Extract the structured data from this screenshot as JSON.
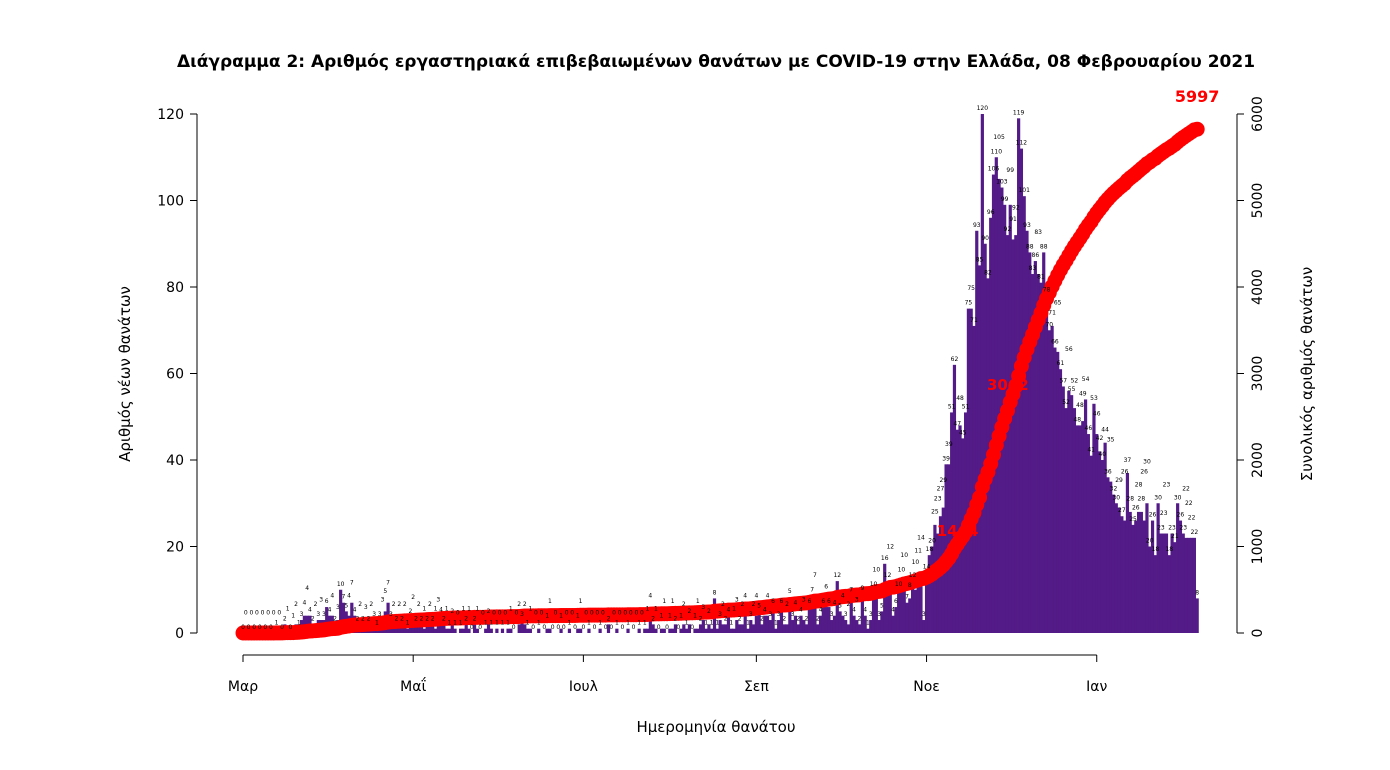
{
  "chart_data": {
    "type": "bar",
    "title": "Διάγραμμα 2: Αριθμός εργαστηριακά επιβεβαιωμένων θανάτων με COVID-19 στην Ελλάδα, 08 Φεβρουαρίου 2021",
    "xlabel": "Ημερομηνία θανάτου",
    "ylabel": "Αριθμός νέων θανάτων",
    "ylabel_right": "Συνολικός αριθμός θανάτων",
    "ylim": [
      0,
      120
    ],
    "ylim_right": [
      0,
      6000
    ],
    "yticks": [
      "0",
      "20",
      "40",
      "60",
      "80",
      "100",
      "120"
    ],
    "yticks_right": [
      "0",
      "1000",
      "2000",
      "3000",
      "4000",
      "5000",
      "6000"
    ],
    "x_start_date": "2020-03-01",
    "xticks": [
      {
        "label": "Μαρ",
        "day": 0
      },
      {
        "label": "Μαΐ",
        "day": 61
      },
      {
        "label": "Ιουλ",
        "day": 122
      },
      {
        "label": "Σεπ",
        "day": 184
      },
      {
        "label": "Νοε",
        "day": 245
      },
      {
        "label": "Ιαν",
        "day": 306
      }
    ],
    "colors": {
      "bars": "#531b87",
      "cumulative": "#ff0000"
    },
    "series": [
      {
        "name": "Νέοι θάνατοι",
        "type": "bar",
        "values": [
          0,
          0,
          0,
          0,
          0,
          0,
          0,
          0,
          0,
          0,
          0,
          0,
          1,
          0,
          0,
          2,
          1,
          0,
          1,
          2,
          1,
          3,
          4,
          4,
          4,
          2,
          2,
          3,
          3,
          3,
          6,
          4,
          4,
          2,
          3,
          10,
          7,
          5,
          4,
          7,
          4,
          2,
          2,
          2,
          3,
          2,
          2,
          3,
          1,
          3,
          3,
          5,
          7,
          3,
          2,
          2,
          2,
          2,
          2,
          1,
          2,
          2,
          2,
          2,
          2,
          1,
          2,
          2,
          2,
          1,
          3,
          4,
          2,
          1,
          1,
          2,
          1,
          0,
          1,
          1,
          2,
          1,
          0,
          2,
          1,
          0,
          0,
          1,
          2,
          1,
          0,
          1,
          0,
          1,
          0,
          1,
          1,
          0,
          0,
          2,
          3,
          2,
          1,
          1,
          0,
          0,
          1,
          0,
          0,
          1,
          1,
          0,
          0,
          0,
          1,
          0,
          0,
          1,
          0,
          0,
          1,
          1,
          0,
          0,
          1,
          0,
          0,
          0,
          1,
          0,
          0,
          2,
          0,
          0,
          1,
          0,
          0,
          0,
          1,
          0,
          0,
          0,
          1,
          0,
          1,
          1,
          4,
          2,
          1,
          0,
          1,
          1,
          0,
          1,
          1,
          2,
          0,
          1,
          2,
          1,
          2,
          0,
          1,
          1,
          2,
          3,
          1,
          2,
          1,
          8,
          1,
          3,
          2,
          2,
          4,
          1,
          1,
          3,
          2,
          2,
          4,
          1,
          3,
          2,
          4,
          5,
          2,
          4,
          4,
          3,
          6,
          1,
          3,
          6,
          2,
          2,
          5,
          3,
          4,
          2,
          4,
          3,
          2,
          6,
          7,
          7,
          2,
          4,
          6,
          6,
          6,
          3,
          4,
          12,
          5,
          4,
          3,
          2,
          7,
          4,
          3,
          2,
          9,
          4,
          1,
          3,
          10,
          10,
          3,
          5,
          16,
          12,
          12,
          4,
          6,
          10,
          10,
          10,
          7,
          8,
          12,
          10,
          11,
          14,
          3,
          14,
          18,
          20,
          25,
          23,
          27,
          29,
          39,
          39,
          51,
          62,
          47,
          48,
          45,
          51,
          75,
          75,
          71,
          93,
          85,
          120,
          90,
          82,
          96,
          106,
          110,
          105,
          103,
          99,
          92,
          99,
          91,
          92,
          119,
          112,
          101,
          93,
          88,
          83,
          86,
          83,
          81,
          88,
          78,
          70,
          71,
          66,
          65,
          61,
          57,
          52,
          56,
          55,
          52,
          48,
          48,
          49,
          54,
          46,
          41,
          53,
          46,
          42,
          40,
          44,
          36,
          35,
          32,
          30,
          29,
          27,
          26,
          37,
          28,
          25,
          26,
          28,
          28,
          26,
          30,
          20,
          26,
          18,
          30,
          23,
          23,
          23,
          18,
          23,
          21,
          30,
          26,
          23,
          22,
          22,
          22,
          22,
          8
        ]
      },
      {
        "name": "Συνολικός αριθμός θανάτων",
        "type": "line",
        "axis": "right",
        "derived": "cumulative sum of daily values"
      }
    ],
    "annotations": [
      {
        "text": "1444",
        "day": 259
      },
      {
        "text": "3062",
        "day": 277
      },
      {
        "text": "5997",
        "day": 342
      }
    ]
  }
}
